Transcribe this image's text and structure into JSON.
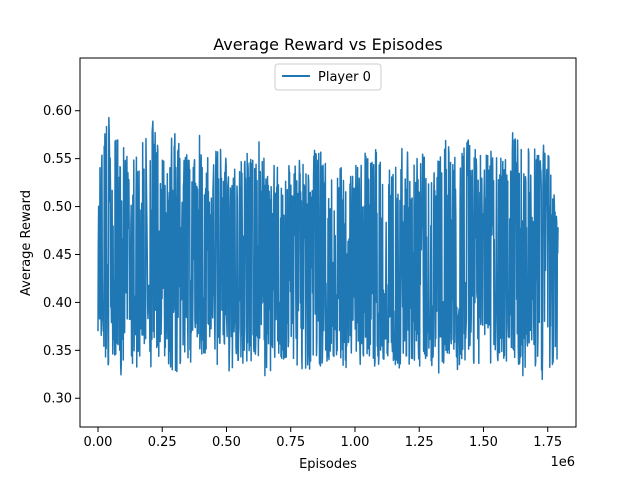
{
  "chart_data": {
    "type": "line",
    "title": "Average Reward vs Episodes",
    "xlabel": "Episodes",
    "ylabel": "Average Reward",
    "x_offset_label": "1e6",
    "xlim": [
      -70000,
      1860000
    ],
    "ylim": [
      0.27,
      0.655
    ],
    "x_ticks": [
      0,
      250000,
      500000,
      750000,
      1000000,
      1250000,
      1500000,
      1750000
    ],
    "x_tick_labels": [
      "0.00",
      "0.25",
      "0.50",
      "0.75",
      "1.00",
      "1.25",
      "1.50",
      "1.75"
    ],
    "y_ticks": [
      0.3,
      0.35,
      0.4,
      0.45,
      0.5,
      0.55,
      0.6
    ],
    "y_tick_labels": [
      "0.30",
      "0.35",
      "0.40",
      "0.45",
      "0.50",
      "0.55",
      "0.60"
    ],
    "legend": {
      "placement": "top-center",
      "entries": [
        "Player 0"
      ]
    },
    "grid": false,
    "colors": {
      "series": "#1f77b4"
    },
    "series": [
      {
        "name": "Player 0",
        "x": [
          0,
          30000,
          60000,
          90000,
          120000,
          150000,
          180000,
          210000,
          240000,
          270000,
          300000,
          330000,
          360000,
          390000,
          420000,
          450000,
          480000,
          510000,
          540000,
          570000,
          600000,
          630000,
          660000,
          690000,
          720000,
          750000,
          780000,
          810000,
          840000,
          870000,
          900000,
          930000,
          960000,
          990000,
          1020000,
          1050000,
          1080000,
          1110000,
          1140000,
          1170000,
          1200000,
          1230000,
          1260000,
          1290000,
          1320000,
          1350000,
          1380000,
          1410000,
          1440000,
          1470000,
          1500000,
          1530000,
          1560000,
          1590000,
          1620000,
          1650000,
          1680000,
          1710000,
          1740000,
          1770000,
          1790000
        ],
        "max": [
          0.52,
          0.61,
          0.57,
          0.57,
          0.55,
          0.56,
          0.57,
          0.6,
          0.55,
          0.56,
          0.59,
          0.55,
          0.56,
          0.59,
          0.55,
          0.56,
          0.57,
          0.55,
          0.54,
          0.56,
          0.55,
          0.57,
          0.54,
          0.55,
          0.53,
          0.56,
          0.55,
          0.54,
          0.56,
          0.56,
          0.53,
          0.55,
          0.56,
          0.54,
          0.55,
          0.56,
          0.56,
          0.54,
          0.55,
          0.56,
          0.57,
          0.55,
          0.56,
          0.54,
          0.55,
          0.58,
          0.55,
          0.56,
          0.57,
          0.56,
          0.55,
          0.56,
          0.56,
          0.55,
          0.59,
          0.56,
          0.56,
          0.56,
          0.59,
          0.52,
          0.49
        ],
        "min": [
          0.37,
          0.33,
          0.34,
          0.32,
          0.34,
          0.33,
          0.34,
          0.33,
          0.34,
          0.33,
          0.32,
          0.34,
          0.33,
          0.35,
          0.34,
          0.33,
          0.34,
          0.32,
          0.34,
          0.33,
          0.33,
          0.33,
          0.32,
          0.33,
          0.33,
          0.34,
          0.33,
          0.32,
          0.34,
          0.33,
          0.34,
          0.33,
          0.33,
          0.34,
          0.33,
          0.34,
          0.33,
          0.34,
          0.34,
          0.33,
          0.33,
          0.34,
          0.33,
          0.34,
          0.32,
          0.34,
          0.33,
          0.33,
          0.34,
          0.33,
          0.34,
          0.33,
          0.34,
          0.33,
          0.33,
          0.32,
          0.34,
          0.33,
          0.31,
          0.33,
          0.33
        ]
      }
    ]
  }
}
